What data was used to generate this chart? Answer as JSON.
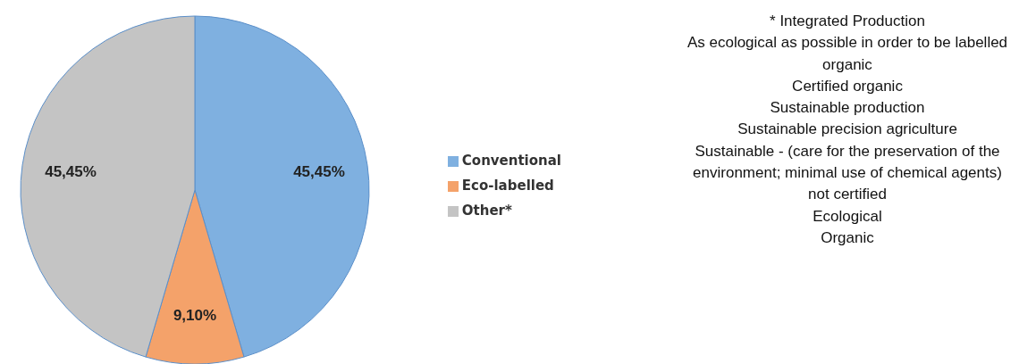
{
  "chart_data": {
    "type": "pie",
    "categories": [
      "Conventional",
      "Eco-labelled",
      "Other*"
    ],
    "values": [
      45.45,
      9.1,
      45.45
    ],
    "colors": [
      "#7fb0e0",
      "#f4a26a",
      "#c4c4c4"
    ],
    "value_labels": [
      "45,45%",
      "9,10%",
      "45,45%"
    ],
    "legend": "right",
    "annotations": [
      "* Integrated Production",
      "As ecological as possible in order to be labelled organic",
      "Certified organic",
      "Sustainable production",
      "Sustainable precision agriculture",
      "Sustainable - (care for the preservation of the environment; minimal use of chemical agents)",
      "not certified",
      "Ecological",
      "Organic"
    ]
  }
}
